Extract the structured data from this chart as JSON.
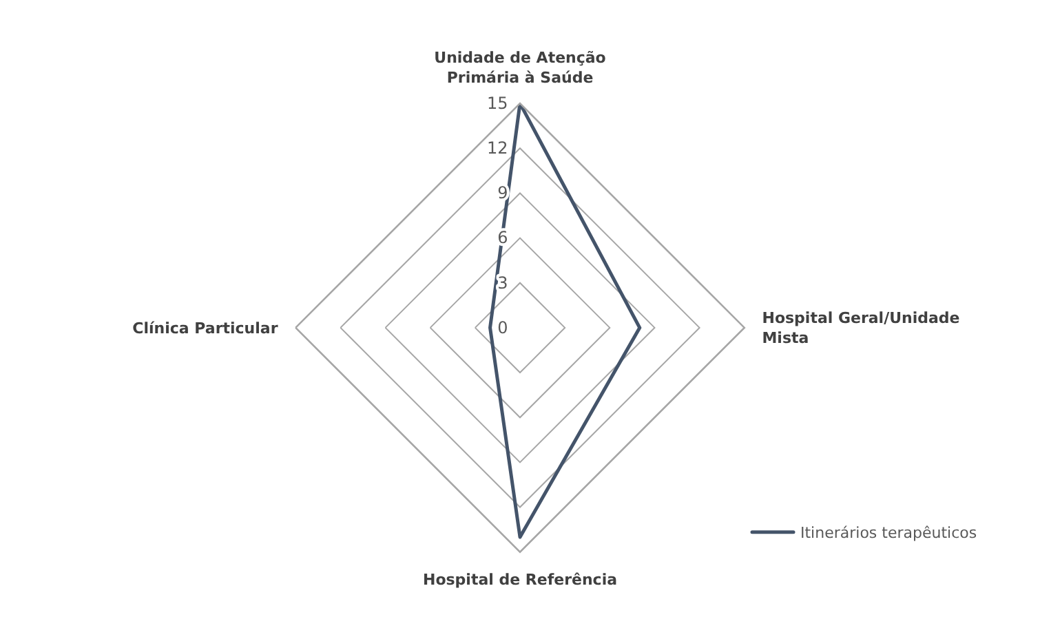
{
  "chart_data": {
    "type": "radar",
    "categories": [
      "Unidade de Atenção Primária à Saúde",
      "Hospital Geral/Unidade Mista",
      "Hospital de Referência",
      "Clínica Particular"
    ],
    "series": [
      {
        "name": "Itinerários terapêuticos",
        "color": "#44546a",
        "values": [
          15,
          8,
          14,
          2
        ]
      }
    ],
    "ylim": [
      0,
      15
    ],
    "yticks": [
      0,
      3,
      6,
      9,
      12,
      15
    ],
    "grid": true,
    "legend": "bottom right",
    "marker": "none"
  }
}
